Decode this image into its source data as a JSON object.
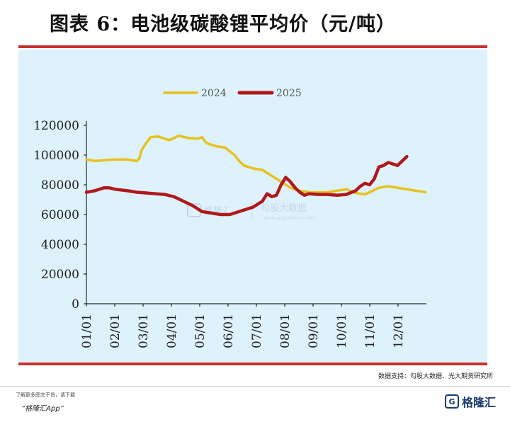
{
  "title": "图表 6：电池级碳酸锂平均价（元/吨）",
  "source": "数据支持：勾股大数据、光大期货研究所",
  "watermark": {
    "brand": "格隆汇",
    "text": "勾股大数据",
    "url": "www.goguodata.com"
  },
  "footer": {
    "promo_small": "了解更多图文干货，请下载",
    "promo_app": "“格隆汇App”",
    "brand": "格隆汇",
    "brand_logo": "G"
  },
  "colors": {
    "rule": "#c8312f",
    "panel": "#def2fb",
    "s2024": "#e6c21e",
    "s2025": "#b0191c"
  },
  "chart_data": {
    "type": "line",
    "title": "",
    "xlabel": "",
    "ylabel": "",
    "ylim": [
      0,
      120000
    ],
    "yticks": [
      "0",
      "20000",
      "40000",
      "60000",
      "80000",
      "100000",
      "120000"
    ],
    "xtick_labels": [
      "01/01",
      "02/01",
      "03/01",
      "04/01",
      "05/01",
      "06/01",
      "07/01",
      "08/01",
      "09/01",
      "10/01",
      "11/01",
      "12/01"
    ],
    "x_unit": "day of year (1 = 01/01)",
    "grid": false,
    "legend": "top-center",
    "series": [
      {
        "name": "2024",
        "x": [
          1,
          10,
          20,
          32,
          45,
          55,
          58,
          60,
          65,
          70,
          78,
          90,
          100,
          110,
          120,
          125,
          130,
          140,
          150,
          160,
          165,
          170,
          175,
          180,
          190,
          200,
          210,
          215,
          220,
          230,
          240,
          250,
          260,
          270,
          280,
          290,
          300,
          305,
          315,
          325,
          335,
          345,
          355,
          365
        ],
        "values": [
          97000,
          96000,
          96500,
          97000,
          97000,
          96000,
          98000,
          103000,
          108000,
          112000,
          112500,
          110000,
          113000,
          111500,
          111000,
          112000,
          108000,
          106000,
          105000,
          100000,
          96000,
          93000,
          92000,
          91000,
          90000,
          86000,
          82000,
          80000,
          78000,
          76000,
          75000,
          75000,
          75000,
          76000,
          77000,
          74500,
          73500,
          75000,
          78000,
          79000,
          78000,
          77000,
          76000,
          75000
        ]
      },
      {
        "name": "2025",
        "x": [
          1,
          10,
          20,
          25,
          32,
          45,
          55,
          65,
          75,
          85,
          95,
          105,
          115,
          125,
          135,
          145,
          155,
          160,
          170,
          180,
          190,
          195,
          200,
          205,
          210,
          215,
          220,
          225,
          230,
          235,
          240,
          250,
          260,
          270,
          280,
          290,
          295,
          300,
          305,
          310,
          315,
          320,
          325,
          330,
          335,
          340,
          345
        ],
        "values": [
          75000,
          76000,
          78000,
          78000,
          77000,
          76000,
          75000,
          74500,
          74000,
          73500,
          72000,
          69000,
          66000,
          62000,
          61000,
          60000,
          60000,
          61000,
          63000,
          65000,
          69000,
          74000,
          72000,
          73000,
          80000,
          85000,
          82000,
          78000,
          75000,
          73000,
          74000,
          73500,
          73500,
          73000,
          73500,
          76000,
          79000,
          81000,
          80000,
          84000,
          92000,
          93000,
          95000,
          94000,
          93000,
          96000,
          99000
        ]
      }
    ]
  }
}
